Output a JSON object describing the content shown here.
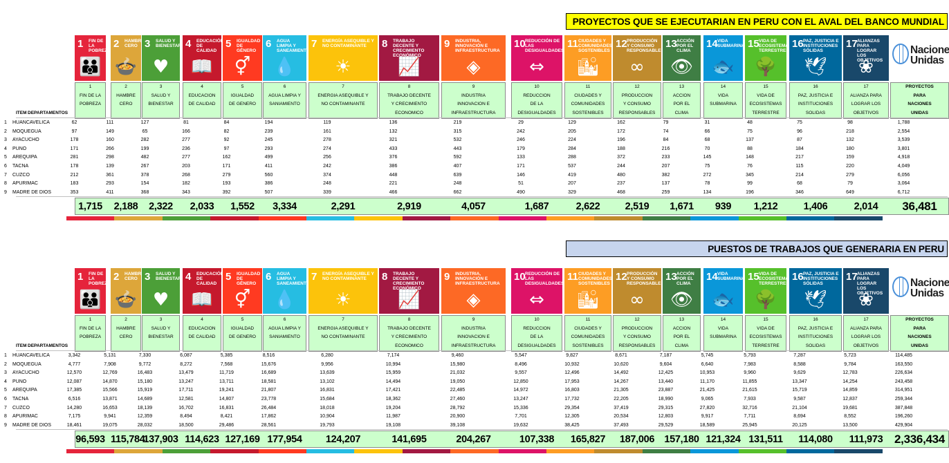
{
  "banner_top": "PROYECTOS QUE SE EJECUTARIAN EN PERU CON EL AVAL DEL BANCO MUNDIAL",
  "banner_bottom": "PUESTOS DE TRABAJOS QUE GENERARIA EN PERU",
  "un_logo_text": "Naciones Unidas",
  "col_item": "ITEM",
  "col_dept": "DEPARTAMENTOS",
  "goals": [
    {
      "num": "1",
      "icon_title": "FIN DE LA POBREZA",
      "hdr": [
        "1",
        "FIN DE LA",
        "POBREZA"
      ],
      "color": "#e5243b",
      "icon": "people-icon",
      "glyph": "👪"
    },
    {
      "num": "2",
      "icon_title": "HAMBRE CERO",
      "hdr": [
        "2",
        "HAMBRE",
        "CERO"
      ],
      "color": "#dda63a",
      "icon": "bowl-icon",
      "glyph": "🍲"
    },
    {
      "num": "3",
      "icon_title": "SALUD Y BIENESTAR",
      "hdr": [
        "3",
        "SALUD Y",
        "BIENESTAR"
      ],
      "color": "#4c9f38",
      "icon": "heartbeat-icon",
      "glyph": "♥"
    },
    {
      "num": "4",
      "icon_title": "EDUCACIÓN DE CALIDAD",
      "hdr": [
        "4",
        "EDUCACION",
        "DE CALIDAD"
      ],
      "color": "#c5192d",
      "icon": "book-icon",
      "glyph": "📖"
    },
    {
      "num": "5",
      "icon_title": "IGUALDAD DE GÉNERO",
      "hdr": [
        "5",
        "IGUALDAD",
        "DE GENERO"
      ],
      "color": "#ff3a21",
      "icon": "gender-icon",
      "glyph": "⚥"
    },
    {
      "num": "6",
      "icon_title": "AGUA LIMPIA Y SANEAMIENTO",
      "hdr": [
        "6",
        "AGUA LIMPIA Y",
        "SANIAMIENTO"
      ],
      "color": "#26bde2",
      "icon": "water-icon",
      "glyph": "💧"
    },
    {
      "num": "7",
      "icon_title": "ENERGÍA ASEQUIBLE Y NO CONTAMINANTE",
      "hdr": [
        "7",
        "ENERGIA ASEQUIBLE Y",
        "NO CONTAMINANTE"
      ],
      "color": "#fcc30b",
      "icon": "sun-icon",
      "glyph": "☀"
    },
    {
      "num": "8",
      "icon_title": "TRABAJO DECENTE Y CRECIMIENTO ECONÓMICO",
      "hdr": [
        "8",
        "TRABAJO DECENTE",
        "Y CRECIMIENTO",
        "ECONOMICO"
      ],
      "color": "#a21942",
      "icon": "growth-icon",
      "glyph": "📈"
    },
    {
      "num": "9",
      "icon_title": "INDUSTRIA, INNOVACIÓN E INFRAESTRUCTURA",
      "hdr": [
        "9",
        "INDUSTRIA",
        "INNOVACION E",
        "INFRAESTRUCTURA"
      ],
      "color": "#fd6925",
      "icon": "cubes-icon",
      "glyph": "◈"
    },
    {
      "num": "10",
      "icon_title": "REDUCCIÓN DE LAS DESIGUALDADES",
      "hdr": [
        "10",
        "REDUCCION",
        "DE LA",
        "DESIGUALDADES"
      ],
      "color": "#dd1367",
      "icon": "equality-icon",
      "glyph": "⇔"
    },
    {
      "num": "11",
      "icon_title": "CIUDADES Y COMUNIDADES SOSTENIBLES",
      "hdr": [
        "11",
        "CIUDADES Y",
        "COMUNIDADES",
        "SOSTENIBLES"
      ],
      "color": "#fd9d24",
      "icon": "city-icon",
      "glyph": "🏙"
    },
    {
      "num": "12",
      "icon_title": "PRODUCCIÓN Y CONSUMO RESPONSABLES",
      "hdr": [
        "12",
        "PRODUCCION",
        "Y CONSUMO",
        "RESPONSABLES"
      ],
      "color": "#bf8b2e",
      "icon": "infinity-icon",
      "glyph": "∞"
    },
    {
      "num": "13",
      "icon_title": "ACCIÓN POR EL CLIMA",
      "hdr": [
        "13",
        "ACCION",
        "POR EL",
        "CLIMA"
      ],
      "color": "#3f7e44",
      "icon": "eye-globe-icon",
      "glyph": "👁"
    },
    {
      "num": "14",
      "icon_title": "VIDA SUBMARINA",
      "hdr": [
        "14",
        "VIDA",
        "SUBMARINA"
      ],
      "color": "#0a97d9",
      "icon": "fish-icon",
      "glyph": "🐟"
    },
    {
      "num": "15",
      "icon_title": "VIDA DE ECOSISTEMAS TERRESTRES",
      "hdr": [
        "15",
        "VIDA DE",
        "ECOSISTEMAS",
        "TERRESTRE"
      ],
      "color": "#56c02b",
      "icon": "tree-icon",
      "glyph": "🌳"
    },
    {
      "num": "16",
      "icon_title": "PAZ, JUSTICIA E INSTITUCIONES SÓLIDAS",
      "hdr": [
        "16",
        "PAZ, JUSTICIA E",
        "INSTITUCIONES",
        "SOLIDAS"
      ],
      "color": "#00689d",
      "icon": "dove-icon",
      "glyph": "🕊"
    },
    {
      "num": "17",
      "icon_title": "ALIANZAS PARA LOGRAR LOS OBJETIVOS",
      "hdr": [
        "17",
        "ALIANZA PARA",
        "LOGRAR LOS",
        "OBJETIVOS"
      ],
      "color": "#19486a",
      "icon": "partnership-icon",
      "glyph": "❀"
    }
  ],
  "last_hdr": [
    "PROYECTOS",
    "PARA",
    "NACIONES",
    "UNIDAS"
  ],
  "rows": [
    {
      "item": "1",
      "dept": "HUANCAVELICA"
    },
    {
      "item": "2",
      "dept": "MOQUEGUA"
    },
    {
      "item": "3",
      "dept": "AYACUCHO"
    },
    {
      "item": "4",
      "dept": "PUNO"
    },
    {
      "item": "5",
      "dept": "AREQUIPA"
    },
    {
      "item": "6",
      "dept": "TACNA"
    },
    {
      "item": "7",
      "dept": "CUZCO"
    },
    {
      "item": "8",
      "dept": "APURIMAC"
    },
    {
      "item": "9",
      "dept": "MADRE DE DIOS"
    }
  ],
  "table_projects": {
    "values": [
      [
        "62",
        "111",
        "127",
        "81",
        "84",
        "194",
        "119",
        "136",
        "219",
        "29",
        "129",
        "162",
        "79",
        "31",
        "48",
        "75",
        "98",
        "1,788"
      ],
      [
        "97",
        "149",
        "65",
        "166",
        "82",
        "239",
        "161",
        "132",
        "315",
        "242",
        "205",
        "172",
        "74",
        "66",
        "75",
        "96",
        "218",
        "2,554"
      ],
      [
        "178",
        "160",
        "282",
        "277",
        "92",
        "245",
        "278",
        "321",
        "532",
        "246",
        "224",
        "196",
        "84",
        "68",
        "137",
        "87",
        "132",
        "3,539"
      ],
      [
        "171",
        "266",
        "199",
        "236",
        "97",
        "293",
        "274",
        "433",
        "443",
        "179",
        "284",
        "188",
        "216",
        "70",
        "88",
        "184",
        "180",
        "3,801"
      ],
      [
        "281",
        "298",
        "482",
        "277",
        "162",
        "499",
        "256",
        "376",
        "592",
        "133",
        "288",
        "372",
        "233",
        "145",
        "148",
        "217",
        "159",
        "4,918"
      ],
      [
        "178",
        "139",
        "267",
        "203",
        "171",
        "411",
        "242",
        "386",
        "407",
        "171",
        "537",
        "244",
        "207",
        "75",
        "76",
        "115",
        "220",
        "4,049"
      ],
      [
        "212",
        "361",
        "378",
        "268",
        "279",
        "560",
        "374",
        "448",
        "639",
        "146",
        "419",
        "480",
        "382",
        "272",
        "345",
        "214",
        "279",
        "6,056"
      ],
      [
        "183",
        "293",
        "154",
        "182",
        "193",
        "386",
        "248",
        "221",
        "248",
        "51",
        "207",
        "237",
        "137",
        "78",
        "99",
        "68",
        "79",
        "3,064"
      ],
      [
        "353",
        "411",
        "368",
        "343",
        "392",
        "507",
        "339",
        "466",
        "662",
        "490",
        "329",
        "468",
        "259",
        "134",
        "196",
        "346",
        "649",
        "6,712"
      ]
    ],
    "totals": [
      "1,715",
      "2,188",
      "2,322",
      "2,033",
      "1,552",
      "3,334",
      "2,291",
      "2,919",
      "4,057",
      "1,687",
      "2,622",
      "2,519",
      "1,671",
      "939",
      "1,212",
      "1,406",
      "2,014",
      "36,481"
    ]
  },
  "table_jobs": {
    "values": [
      [
        "3,342",
        "5,131",
        "7,330",
        "6,087",
        "5,385",
        "8,516",
        "6,280",
        "7,174",
        "9,460",
        "5,547",
        "9,827",
        "8,671",
        "7,187",
        "5,745",
        "5,793",
        "7,287",
        "5,723",
        "114,485"
      ],
      [
        "4,777",
        "7,908",
        "9,772",
        "8,272",
        "7,568",
        "15,676",
        "9,956",
        "10,994",
        "15,980",
        "8,496",
        "10,932",
        "10,620",
        "9,604",
        "6,640",
        "7,983",
        "8,588",
        "9,784",
        "163,550"
      ],
      [
        "12,570",
        "12,769",
        "16,483",
        "13,479",
        "11,719",
        "16,689",
        "13,639",
        "15,959",
        "21,032",
        "9,557",
        "12,496",
        "14,492",
        "12,425",
        "10,953",
        "9,960",
        "9,629",
        "12,783",
        "226,634"
      ],
      [
        "12,087",
        "14,870",
        "15,180",
        "13,247",
        "13,711",
        "18,581",
        "13,102",
        "14,494",
        "19,050",
        "12,850",
        "17,953",
        "14,267",
        "13,440",
        "11,170",
        "11,855",
        "13,347",
        "14,254",
        "243,458"
      ],
      [
        "17,385",
        "15,566",
        "15,919",
        "17,711",
        "19,241",
        "21,807",
        "16,831",
        "17,421",
        "22,485",
        "14,972",
        "16,803",
        "21,305",
        "23,887",
        "21,425",
        "21,615",
        "15,719",
        "14,859",
        "314,951"
      ],
      [
        "6,516",
        "13,871",
        "14,689",
        "12,581",
        "14,807",
        "23,778",
        "15,684",
        "18,362",
        "27,460",
        "13,247",
        "17,732",
        "22,205",
        "18,990",
        "9,065",
        "7,933",
        "9,587",
        "12,837",
        "259,344"
      ],
      [
        "14,280",
        "16,653",
        "18,139",
        "16,702",
        "16,831",
        "26,484",
        "18,018",
        "19,204",
        "28,792",
        "15,336",
        "29,354",
        "37,419",
        "29,315",
        "27,820",
        "32,716",
        "21,104",
        "19,681",
        "387,848"
      ],
      [
        "7,175",
        "9,941",
        "12,359",
        "8,494",
        "8,421",
        "17,862",
        "10,904",
        "11,987",
        "20,900",
        "7,701",
        "12,305",
        "20,534",
        "12,803",
        "9,917",
        "7,711",
        "8,694",
        "8,552",
        "196,260"
      ],
      [
        "18,461",
        "19,075",
        "28,032",
        "18,500",
        "29,486",
        "28,561",
        "19,793",
        "19,108",
        "39,108",
        "19,632",
        "38,425",
        "37,493",
        "29,529",
        "18,589",
        "25,945",
        "20,125",
        "13,500",
        "429,904"
      ]
    ],
    "totals": [
      "96,593",
      "115,784",
      "137,903",
      "114,623",
      "127,169",
      "177,954",
      "124,207",
      "141,695",
      "204,267",
      "107,338",
      "165,827",
      "187,006",
      "157,180",
      "121,324",
      "131,511",
      "114,080",
      "111,973",
      "2,336,434"
    ]
  }
}
